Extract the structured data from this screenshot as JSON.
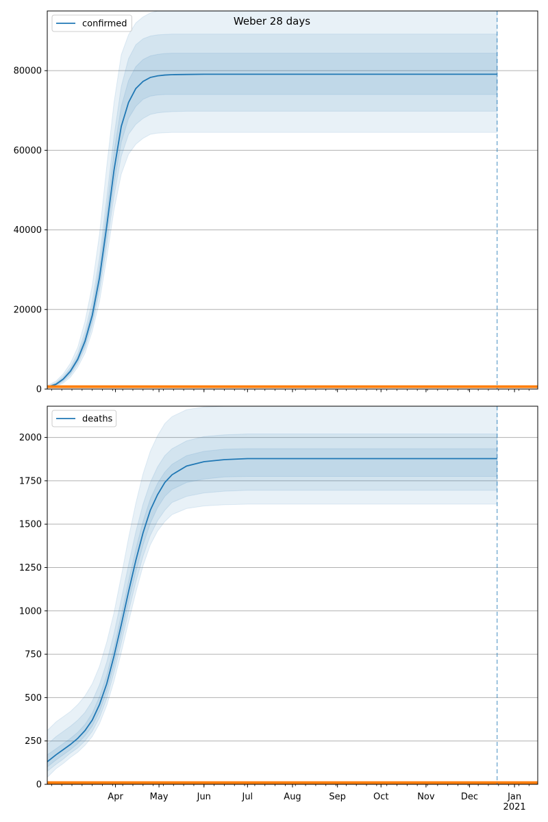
{
  "figure": {
    "title": "Weber 28 days"
  },
  "colors": {
    "series": "#1f77b4",
    "band": "#1f77b4",
    "observed": "#ff7f0e",
    "grid": "#b0b0b0",
    "axis": "#000000"
  },
  "chart_data": [
    {
      "type": "line",
      "name": "confirmed",
      "legend": {
        "label": "confirmed",
        "location": "upper-left"
      },
      "grid": "y-major",
      "x_start": "2020-02-14",
      "x_end": "2021-01-17",
      "forecast_end": "2020-12-20",
      "ylim": [
        0,
        95000
      ],
      "yticks": [
        0,
        20000,
        40000,
        60000,
        80000
      ],
      "ytick_labels": [
        "0",
        "20000",
        "40000",
        "60000",
        "80000"
      ],
      "xticks": [
        "2020-04-01",
        "2020-05-01",
        "2020-06-01",
        "2020-07-01",
        "2020-08-01",
        "2020-09-01",
        "2020-10-01",
        "2020-11-01",
        "2020-12-01",
        "2021-01-01"
      ],
      "xtick_labels": [
        "Apr",
        "May",
        "Jun",
        "Jul",
        "Aug",
        "Sep",
        "Oct",
        "Nov",
        "Dec",
        "Jan\n2021"
      ],
      "median": {
        "x": [
          "2020-02-14",
          "2020-02-20",
          "2020-02-25",
          "2020-03-01",
          "2020-03-06",
          "2020-03-11",
          "2020-03-16",
          "2020-03-21",
          "2020-03-26",
          "2020-03-31",
          "2020-04-05",
          "2020-04-10",
          "2020-04-15",
          "2020-04-20",
          "2020-04-25",
          "2020-04-30",
          "2020-05-05",
          "2020-05-10",
          "2020-05-20",
          "2020-06-01",
          "2020-07-01",
          "2020-12-20"
        ],
        "y": [
          500,
          1200,
          2500,
          4500,
          7500,
          12000,
          18500,
          28000,
          41000,
          55000,
          66000,
          72000,
          75500,
          77300,
          78300,
          78700,
          78900,
          79000,
          79050,
          79100,
          79100,
          79100
        ]
      },
      "bands": [
        {
          "interval": "outer",
          "lower": [
            200,
            600,
            1500,
            3000,
            5500,
            9000,
            14500,
            22000,
            33000,
            45000,
            54000,
            59000,
            61500,
            63000,
            64000,
            64300,
            64400,
            64500,
            64500,
            64500,
            64500,
            64500
          ],
          "upper": [
            900,
            2000,
            3800,
            6500,
            10500,
            17000,
            26000,
            39000,
            56000,
            72000,
            84000,
            89000,
            92000,
            93500,
            94500,
            95000,
            95000,
            95000,
            95000,
            95000,
            95000,
            95000
          ]
        },
        {
          "interval": "middle",
          "lower": [
            300,
            800,
            1900,
            3600,
            6300,
            10200,
            16000,
            24500,
            36000,
            48500,
            58500,
            64000,
            66500,
            68000,
            69000,
            69400,
            69600,
            69700,
            69800,
            69800,
            69800,
            69800
          ],
          "upper": [
            700,
            1600,
            3200,
            5500,
            9000,
            14500,
            22000,
            33000,
            48000,
            63500,
            76000,
            83000,
            86500,
            88000,
            88700,
            89000,
            89100,
            89200,
            89200,
            89200,
            89200,
            89200
          ]
        },
        {
          "interval": "inner",
          "lower": [
            400,
            1000,
            2200,
            4000,
            6900,
            11000,
            17200,
            26000,
            38500,
            51500,
            62000,
            68000,
            71000,
            72800,
            73600,
            73900,
            74000,
            74000,
            74000,
            74000,
            74000,
            74000
          ],
          "upper": [
            600,
            1400,
            2800,
            5000,
            8200,
            13200,
            20000,
            30500,
            44500,
            59500,
            71000,
            77500,
            81000,
            82800,
            83700,
            84100,
            84300,
            84400,
            84400,
            84400,
            84400,
            84400
          ]
        }
      ],
      "observed": {
        "x": [
          "2020-02-14",
          "2021-01-17"
        ],
        "y": [
          600,
          600
        ]
      }
    },
    {
      "type": "line",
      "name": "deaths",
      "legend": {
        "label": "deaths",
        "location": "upper-left"
      },
      "grid": "y-major",
      "x_start": "2020-02-14",
      "x_end": "2021-01-17",
      "forecast_end": "2020-12-20",
      "ylim": [
        0,
        2180
      ],
      "yticks": [
        0,
        250,
        500,
        750,
        1000,
        1250,
        1500,
        1750,
        2000
      ],
      "ytick_labels": [
        "0",
        "250",
        "500",
        "750",
        "1000",
        "1250",
        "1500",
        "1750",
        "2000"
      ],
      "xticks": [
        "2020-04-01",
        "2020-05-01",
        "2020-06-01",
        "2020-07-01",
        "2020-08-01",
        "2020-09-01",
        "2020-10-01",
        "2020-11-01",
        "2020-12-01",
        "2021-01-01"
      ],
      "xtick_labels": [
        "Apr",
        "May",
        "Jun",
        "Jul",
        "Aug",
        "Sep",
        "Oct",
        "Nov",
        "Dec",
        "Jan\n2021"
      ],
      "median": {
        "x": [
          "2020-02-14",
          "2020-02-20",
          "2020-02-25",
          "2020-03-01",
          "2020-03-06",
          "2020-03-11",
          "2020-03-16",
          "2020-03-21",
          "2020-03-26",
          "2020-03-31",
          "2020-04-05",
          "2020-04-10",
          "2020-04-15",
          "2020-04-20",
          "2020-04-25",
          "2020-04-30",
          "2020-05-05",
          "2020-05-10",
          "2020-05-20",
          "2020-06-01",
          "2020-06-15",
          "2020-07-01",
          "2020-12-20"
        ],
        "y": [
          130,
          170,
          200,
          230,
          265,
          310,
          370,
          460,
          580,
          740,
          920,
          1110,
          1290,
          1450,
          1580,
          1670,
          1740,
          1785,
          1835,
          1860,
          1872,
          1878,
          1878
        ]
      },
      "bands": [
        {
          "interval": "outer",
          "lower": [
            40,
            90,
            120,
            155,
            185,
            225,
            275,
            350,
            455,
            595,
            760,
            935,
            1105,
            1260,
            1380,
            1460,
            1515,
            1555,
            1590,
            1605,
            1612,
            1615,
            1615
          ],
          "upper": [
            310,
            360,
            390,
            420,
            460,
            510,
            580,
            680,
            820,
            990,
            1200,
            1420,
            1620,
            1790,
            1920,
            2010,
            2080,
            2120,
            2160,
            2175,
            2180,
            2180,
            2180
          ]
        },
        {
          "interval": "middle",
          "lower": [
            75,
            115,
            145,
            180,
            210,
            250,
            305,
            385,
            495,
            645,
            815,
            995,
            1165,
            1315,
            1435,
            1520,
            1580,
            1625,
            1660,
            1680,
            1690,
            1695,
            1695
          ],
          "upper": [
            230,
            275,
            305,
            335,
            370,
            415,
            480,
            575,
            705,
            870,
            1065,
            1265,
            1455,
            1615,
            1740,
            1830,
            1895,
            1935,
            1980,
            2005,
            2015,
            2020,
            2020
          ]
        },
        {
          "interval": "inner",
          "lower": [
            100,
            140,
            170,
            200,
            235,
            280,
            335,
            420,
            535,
            690,
            865,
            1050,
            1225,
            1380,
            1505,
            1595,
            1660,
            1700,
            1740,
            1760,
            1772,
            1775,
            1775
          ],
          "upper": [
            170,
            205,
            235,
            265,
            300,
            345,
            410,
            505,
            630,
            790,
            975,
            1170,
            1355,
            1515,
            1645,
            1735,
            1800,
            1845,
            1895,
            1920,
            1932,
            1935,
            1935
          ]
        }
      ],
      "observed": {
        "x": [
          "2020-02-14",
          "2021-01-17"
        ],
        "y": [
          10,
          10
        ]
      }
    }
  ]
}
